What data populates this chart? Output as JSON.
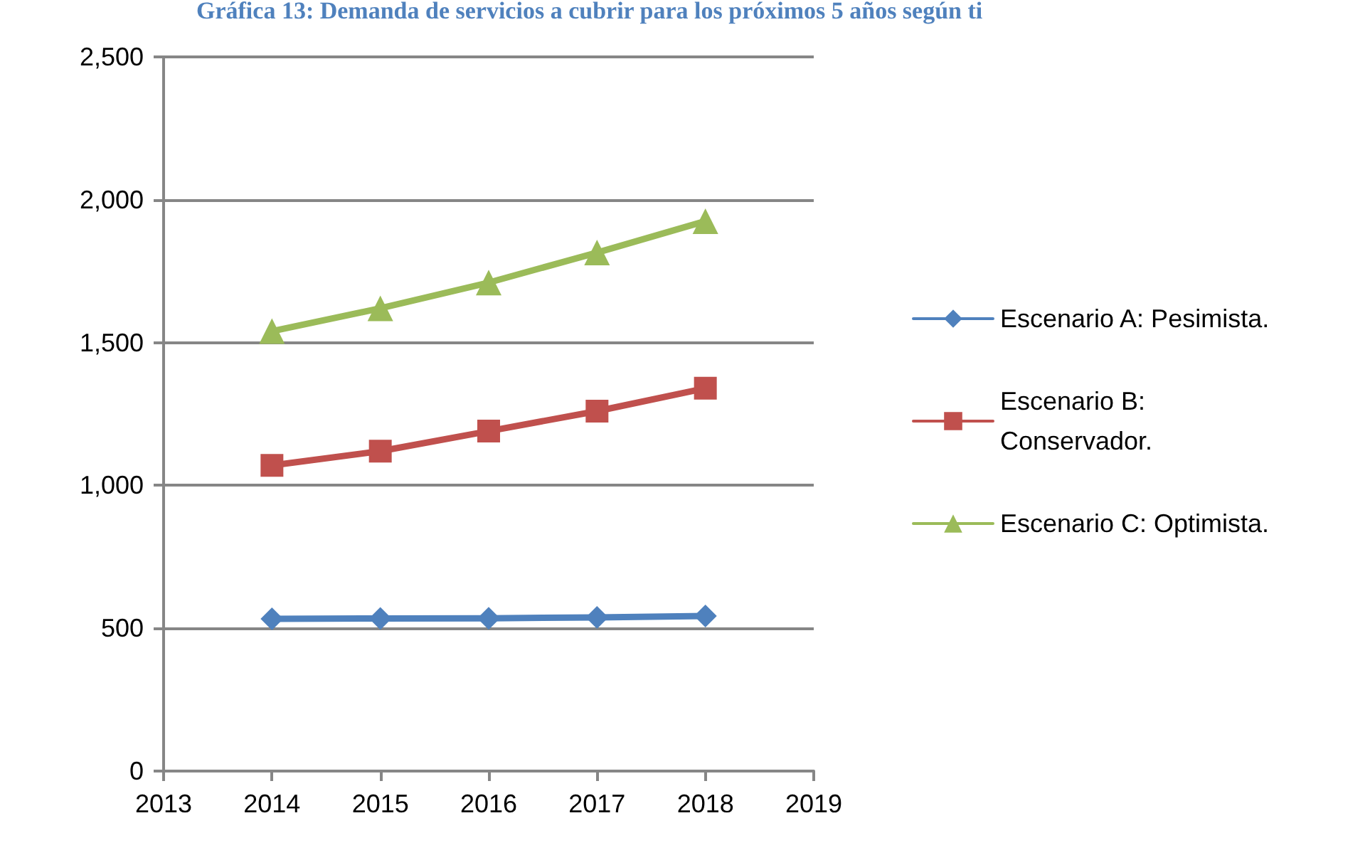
{
  "chart_data": {
    "type": "line",
    "title": "Gráfica 13: Demanda de servicios a cubrir para los próximos 5 años según ti",
    "x": [
      2014,
      2015,
      2016,
      2017,
      2018
    ],
    "series": [
      {
        "name": "Escenario A: Pesimista.",
        "color": "#4f81bd",
        "marker": "diamond",
        "values": [
          533,
          534,
          535,
          538,
          543
        ]
      },
      {
        "name": "Escenario B: Conservador.",
        "color": "#c0504d",
        "marker": "square",
        "values": [
          1070,
          1120,
          1190,
          1260,
          1340
        ]
      },
      {
        "name": "Escenario C: Optimista.",
        "color": "#9bbb59",
        "marker": "triangle",
        "values": [
          1540,
          1620,
          1710,
          1815,
          1925
        ]
      }
    ],
    "xlim": [
      2013,
      2019
    ],
    "xticks": [
      2013,
      2014,
      2015,
      2016,
      2017,
      2018,
      2019
    ],
    "ylim": [
      0,
      2500
    ],
    "yticks": [
      0,
      500,
      {
        "value": 1000,
        "label": "1,000"
      },
      {
        "value": 1500,
        "label": "1,500"
      },
      {
        "value": 2000,
        "label": "2,000"
      },
      {
        "value": 2500,
        "label": "2,500"
      }
    ],
    "grid": "y",
    "legend": "right",
    "line_style": "solid"
  }
}
